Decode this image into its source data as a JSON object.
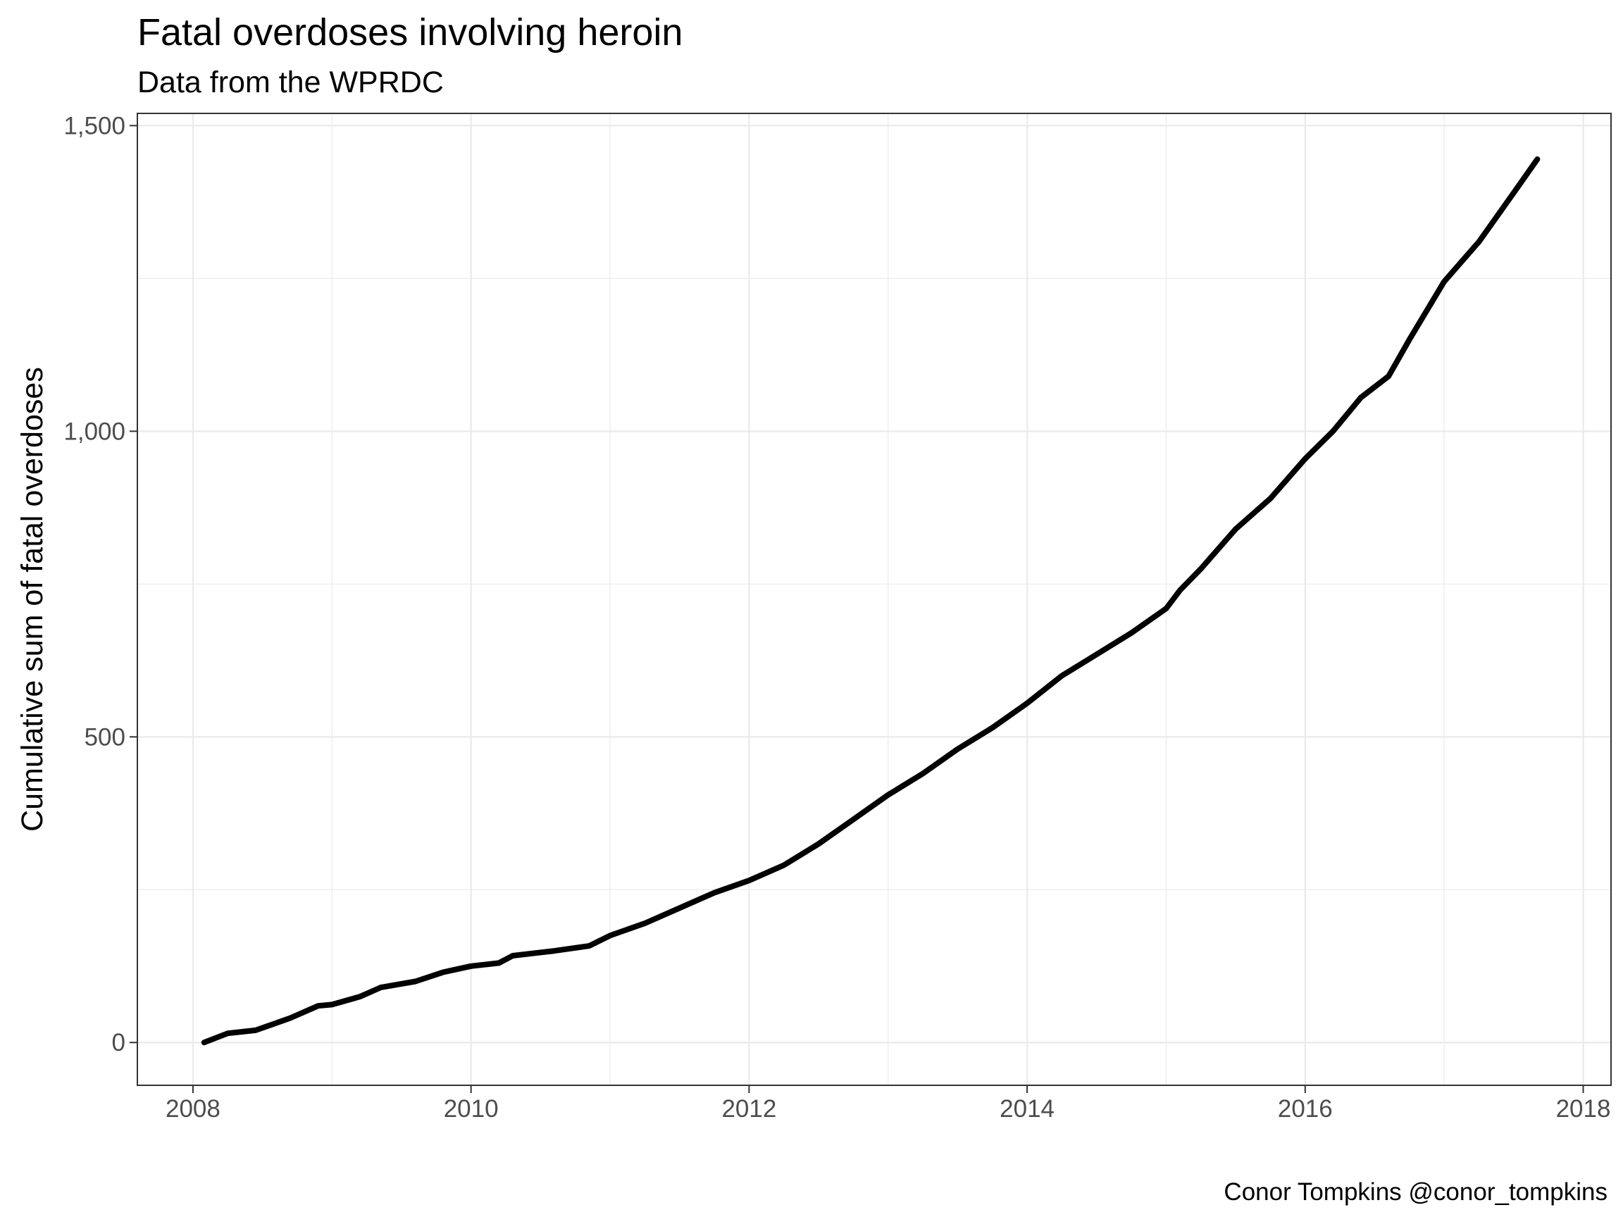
{
  "chart_data": {
    "type": "line",
    "title": "Fatal overdoses involving heroin",
    "subtitle": "Data from the WPRDC",
    "xlabel": "",
    "ylabel": "Cumulative sum of fatal overdoses",
    "caption": "Conor Tompkins @conor_tompkins",
    "xlim": [
      2007.6,
      2018.2
    ],
    "ylim": [
      -70,
      1520
    ],
    "x_ticks": [
      2008,
      2010,
      2012,
      2014,
      2016,
      2018
    ],
    "x_tick_labels": [
      "2008",
      "2010",
      "2012",
      "2014",
      "2016",
      "2018"
    ],
    "y_ticks": [
      0,
      500,
      1000,
      1500
    ],
    "y_tick_labels": [
      "0",
      "500",
      "1,000",
      "1,500"
    ],
    "grid": true,
    "line_color": "#000000",
    "series": [
      {
        "x": [
          2008.08,
          2008.25,
          2008.45,
          2008.7,
          2008.9,
          2009.0,
          2009.2,
          2009.35,
          2009.6,
          2009.8,
          2010.0,
          2010.2,
          2010.3,
          2010.6,
          2010.85,
          2011.0,
          2011.25,
          2011.5,
          2011.75,
          2012.0,
          2012.25,
          2012.5,
          2012.75,
          2013.0,
          2013.25,
          2013.5,
          2013.75,
          2014.0,
          2014.25,
          2014.5,
          2014.75,
          2015.0,
          2015.1,
          2015.25,
          2015.5,
          2015.75,
          2016.0,
          2016.2,
          2016.4,
          2016.6,
          2016.75,
          2017.0,
          2017.25,
          2017.5,
          2017.67
        ],
        "y": [
          0,
          15,
          20,
          40,
          60,
          62,
          75,
          90,
          100,
          115,
          125,
          130,
          142,
          150,
          158,
          175,
          195,
          220,
          245,
          265,
          290,
          325,
          365,
          405,
          440,
          480,
          515,
          555,
          600,
          635,
          670,
          710,
          740,
          775,
          840,
          890,
          955,
          1000,
          1055,
          1090,
          1150,
          1245,
          1310,
          1390,
          1445
        ]
      }
    ]
  }
}
